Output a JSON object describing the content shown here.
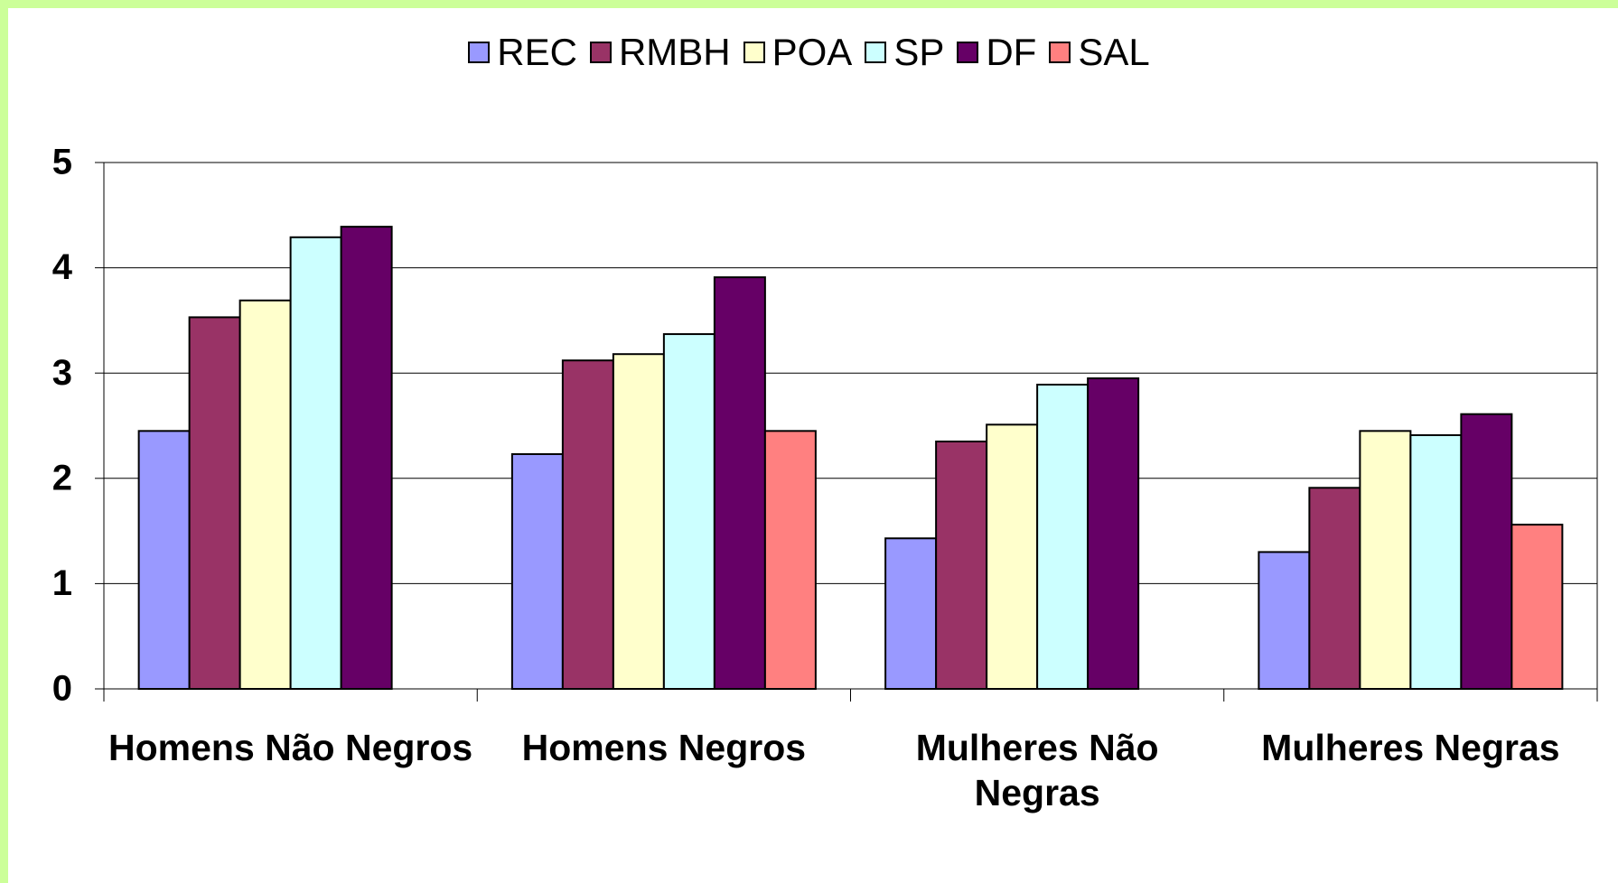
{
  "chart_data": {
    "type": "bar",
    "categories": [
      "Homens Não Negros",
      "Homens Negros",
      "Mulheres Não Negras",
      "Mulheres Negras"
    ],
    "series": [
      {
        "name": "REC",
        "color": "#9999ff",
        "values": [
          2.45,
          2.23,
          1.43,
          1.3
        ]
      },
      {
        "name": "RMBH",
        "color": "#993366",
        "values": [
          3.53,
          3.12,
          2.35,
          1.91
        ]
      },
      {
        "name": "POA",
        "color": "#ffffcc",
        "values": [
          3.69,
          3.18,
          2.51,
          2.45
        ]
      },
      {
        "name": "SP",
        "color": "#ccffff",
        "values": [
          4.29,
          3.37,
          2.89,
          2.41
        ]
      },
      {
        "name": "DF",
        "color": "#660066",
        "values": [
          4.39,
          3.91,
          2.95,
          2.61
        ]
      },
      {
        "name": "SAL",
        "color": "#ff8080",
        "values": [
          null,
          2.45,
          null,
          1.56
        ]
      }
    ],
    "ylim": [
      0,
      5
    ],
    "yticks": [
      0,
      1,
      2,
      3,
      4,
      5
    ],
    "grid": true,
    "legend": "top"
  }
}
